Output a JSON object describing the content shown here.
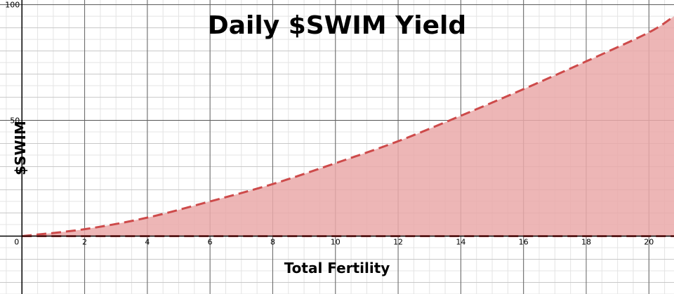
{
  "chart_data": {
    "type": "area",
    "title": "Daily $SWIM Yield",
    "xlabel": "Total Fertility",
    "ylabel": "$SWIM",
    "xlim": [
      -0.7,
      20.8
    ],
    "ylim": [
      -25,
      102
    ],
    "x_ticks": [
      "0",
      "2",
      "4",
      "6",
      "8",
      "10",
      "12",
      "14",
      "16",
      "18",
      "20"
    ],
    "y_ticks": [
      "50",
      "100"
    ],
    "grid": true,
    "line_style": "dashed",
    "series": [
      {
        "x": [
          0,
          2,
          4,
          6,
          8,
          10,
          12,
          14,
          16,
          18,
          20,
          20.8
        ],
        "values": [
          0,
          3,
          8,
          15,
          22.5,
          31.5,
          41,
          52,
          63.5,
          75.5,
          88,
          95
        ]
      }
    ],
    "colors": {
      "line": "#cd4a4a",
      "fill": "#eaa9a9",
      "grid_minor": "#e4e4e4",
      "grid_major": "#c8c8c8",
      "axis": "#000000"
    }
  }
}
